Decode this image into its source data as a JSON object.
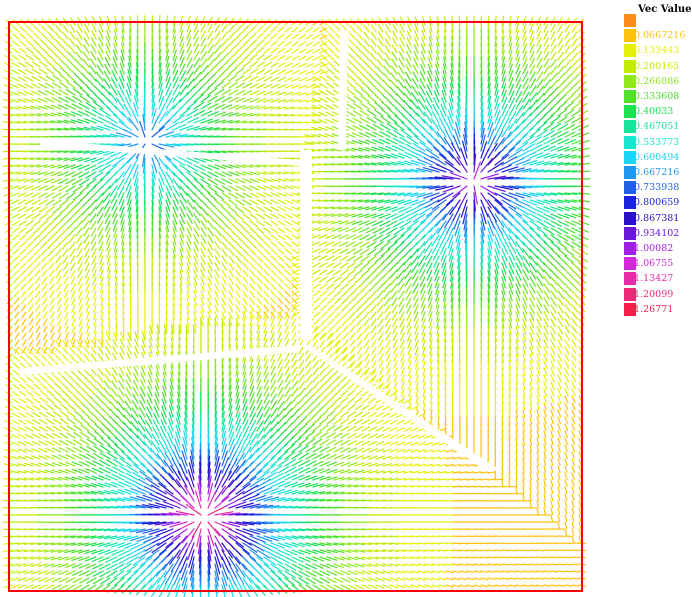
{
  "chart_data": {
    "type": "vector-field",
    "title": "",
    "xlabel": "",
    "ylabel": "",
    "legend": {
      "title": "Vec Value",
      "placement": "right",
      "entries": [
        {
          "label": "",
          "color": "#FF8C1A"
        },
        {
          "label": "0.0667216",
          "color": "#FFC20E"
        },
        {
          "label": "0.133443",
          "color": "#E5F00A"
        },
        {
          "label": "0.200165",
          "color": "#C2EC08"
        },
        {
          "label": "0.266886",
          "color": "#8FE81A"
        },
        {
          "label": "0.333608",
          "color": "#4EE02A"
        },
        {
          "label": "0.40033",
          "color": "#1EE050"
        },
        {
          "label": "0.467051",
          "color": "#17E49A"
        },
        {
          "label": "0.533773",
          "color": "#18E6CE"
        },
        {
          "label": "0.600494",
          "color": "#1BD6F4"
        },
        {
          "label": "0.667216",
          "color": "#1F98F0"
        },
        {
          "label": "0.733938",
          "color": "#2060E6"
        },
        {
          "label": "0.800659",
          "color": "#1B22E0"
        },
        {
          "label": "0.867381",
          "color": "#2A10C8"
        },
        {
          "label": "0.934102",
          "color": "#6A18D8"
        },
        {
          "label": "1.00082",
          "color": "#A020E8"
        },
        {
          "label": "1.06755",
          "color": "#D22AD8"
        },
        {
          "label": "1.13427",
          "color": "#E62AA8"
        },
        {
          "label": "1.20099",
          "color": "#F02878"
        },
        {
          "label": "1.26771",
          "color": "#F41E48"
        }
      ]
    },
    "vmin": 0,
    "vmax": 1.26771,
    "domain_border_color": "#FF0000",
    "sources": [
      {
        "x": 0.24,
        "y": 0.79,
        "strength": 0.75
      },
      {
        "x": 0.81,
        "y": 0.72,
        "strength": 1.05
      },
      {
        "x": 0.34,
        "y": 0.13,
        "strength": 1.25
      }
    ]
  }
}
